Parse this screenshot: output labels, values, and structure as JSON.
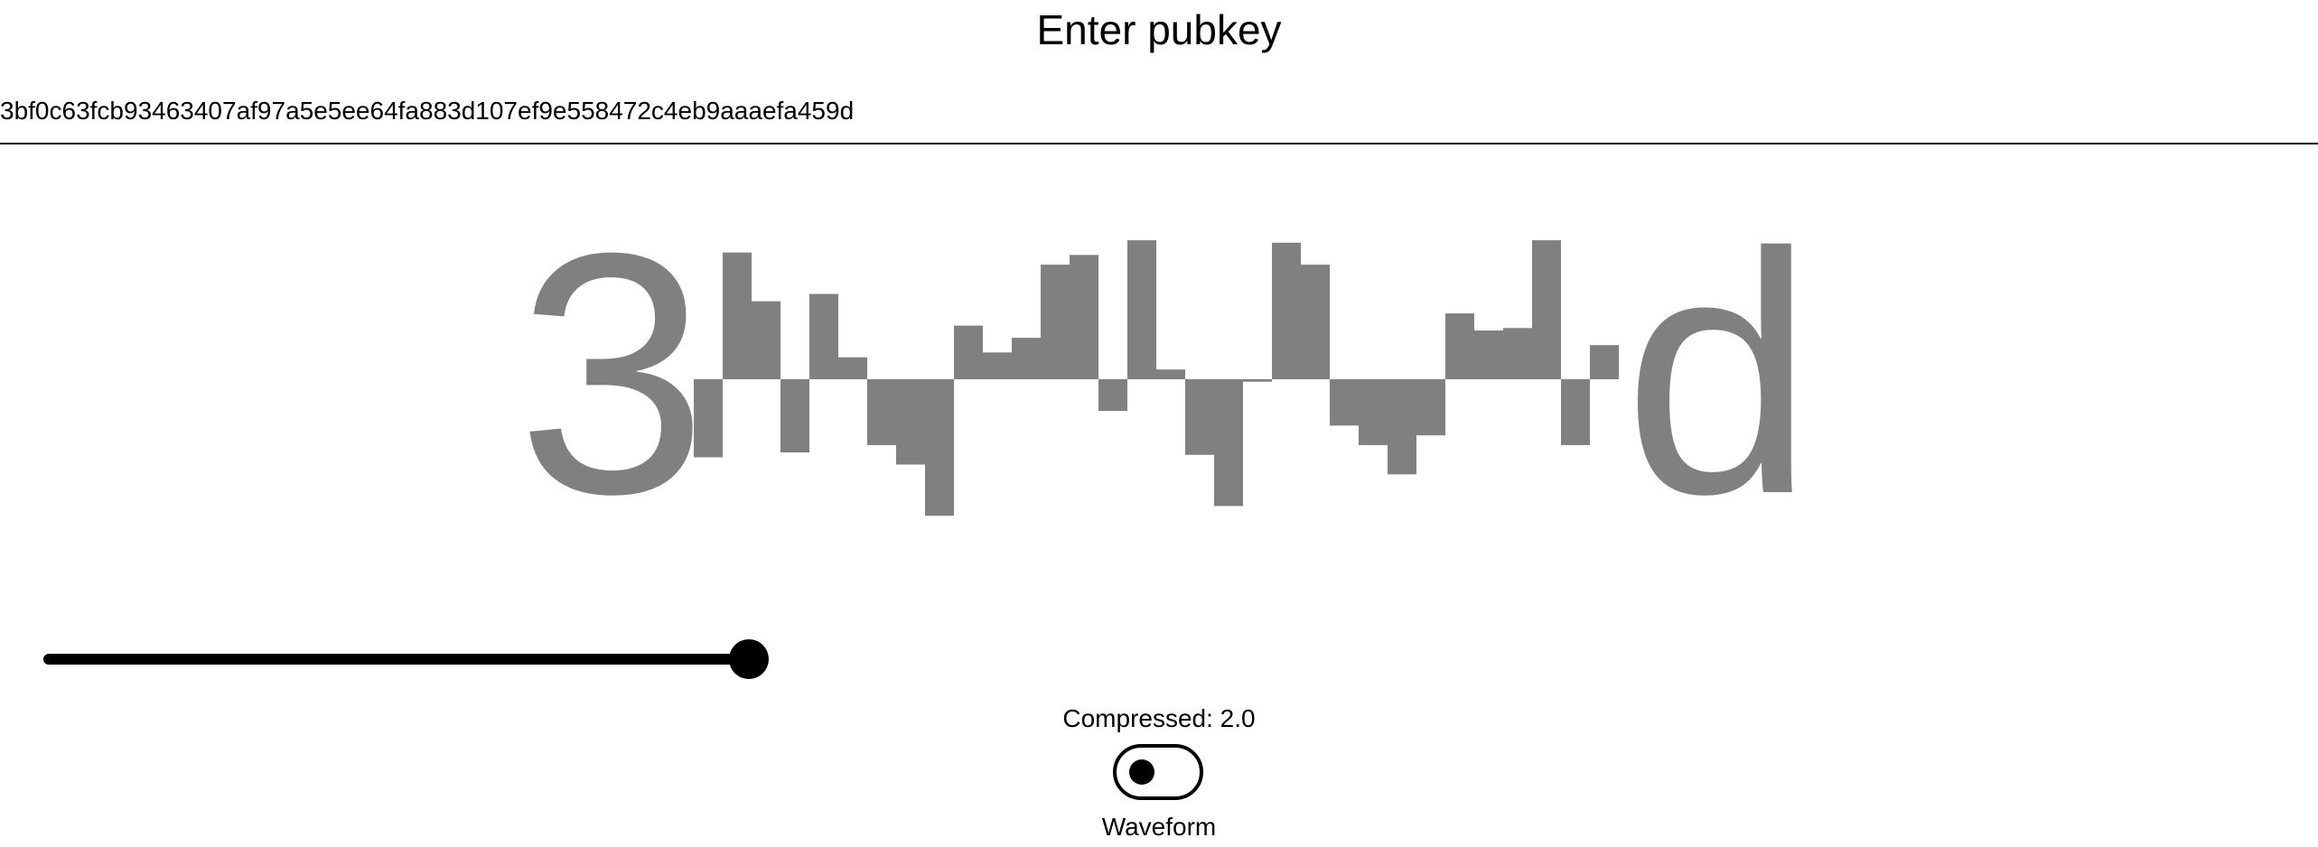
{
  "title": "Enter pubkey",
  "pubkey_input": {
    "value": "3bf0c63fcb93463407af97a5e5ee64fa883d107ef9e558472c4eb9aaaefa459d",
    "placeholder": ""
  },
  "visualization": {
    "first_char": "3",
    "last_char": "d",
    "bar_color": "#808080",
    "bars": [
      -0.32,
      0.52,
      0.32,
      -0.3,
      0.35,
      0.09,
      -0.27,
      -0.35,
      -0.56,
      0.22,
      0.11,
      0.17,
      0.47,
      0.51,
      -0.13,
      0.57,
      0.04,
      -0.31,
      -0.52,
      -0.01,
      0.56,
      0.47,
      -0.19,
      -0.27,
      -0.39,
      -0.23,
      0.27,
      0.2,
      0.21,
      0.57,
      -0.27,
      0.14
    ]
  },
  "slider": {
    "value_fraction": 0.62,
    "color": "#000000"
  },
  "compress_label": "Compressed: 2.0",
  "waveform_toggle": {
    "label": "Waveform",
    "state": "off"
  }
}
